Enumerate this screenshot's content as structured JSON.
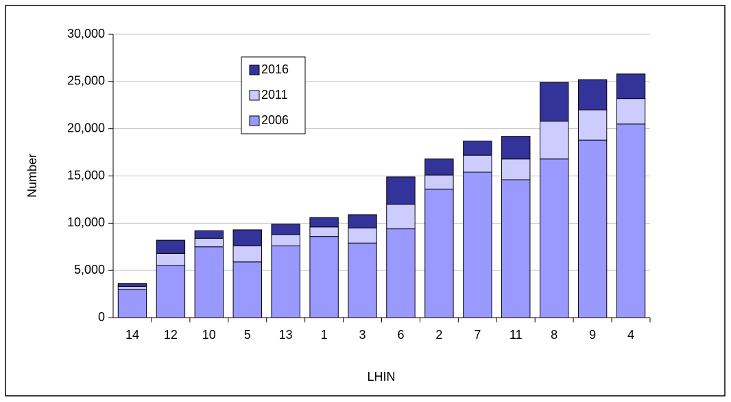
{
  "chart_data": {
    "type": "stacked_bar",
    "x_label": "LHIN",
    "y_label": "Number",
    "categories": [
      "14",
      "12",
      "10",
      "5",
      "13",
      "1",
      "3",
      "6",
      "2",
      "7",
      "11",
      "8",
      "9",
      "4"
    ],
    "series": [
      {
        "name": "2006",
        "color": "#9999ff",
        "values": [
          3000,
          5500,
          7500,
          5900,
          7600,
          8600,
          7900,
          9400,
          13600,
          15400,
          14600,
          16800,
          18800,
          20500
        ]
      },
      {
        "name": "2011",
        "color": "#ccccff",
        "values": [
          300,
          1300,
          900,
          1700,
          1200,
          1000,
          1600,
          2600,
          1500,
          1800,
          2200,
          4000,
          3200,
          2700
        ]
      },
      {
        "name": "2016",
        "color": "#333399",
        "values": [
          300,
          1400,
          800,
          1700,
          1100,
          1000,
          1400,
          2900,
          1700,
          1500,
          2400,
          4100,
          3200,
          2600
        ]
      }
    ],
    "ylim": [
      0,
      30000
    ],
    "yticks": [
      0,
      {
        "value": 5000,
        "label": "5,000"
      },
      {
        "value": 10000,
        "label": "10,000"
      },
      {
        "value": 15000,
        "label": "15,000"
      },
      {
        "value": 20000,
        "label": "20,000"
      },
      {
        "value": 25000,
        "label": "25,000"
      },
      {
        "value": 30000,
        "label": "30,000"
      }
    ],
    "grid": true,
    "legend": "upper left"
  }
}
